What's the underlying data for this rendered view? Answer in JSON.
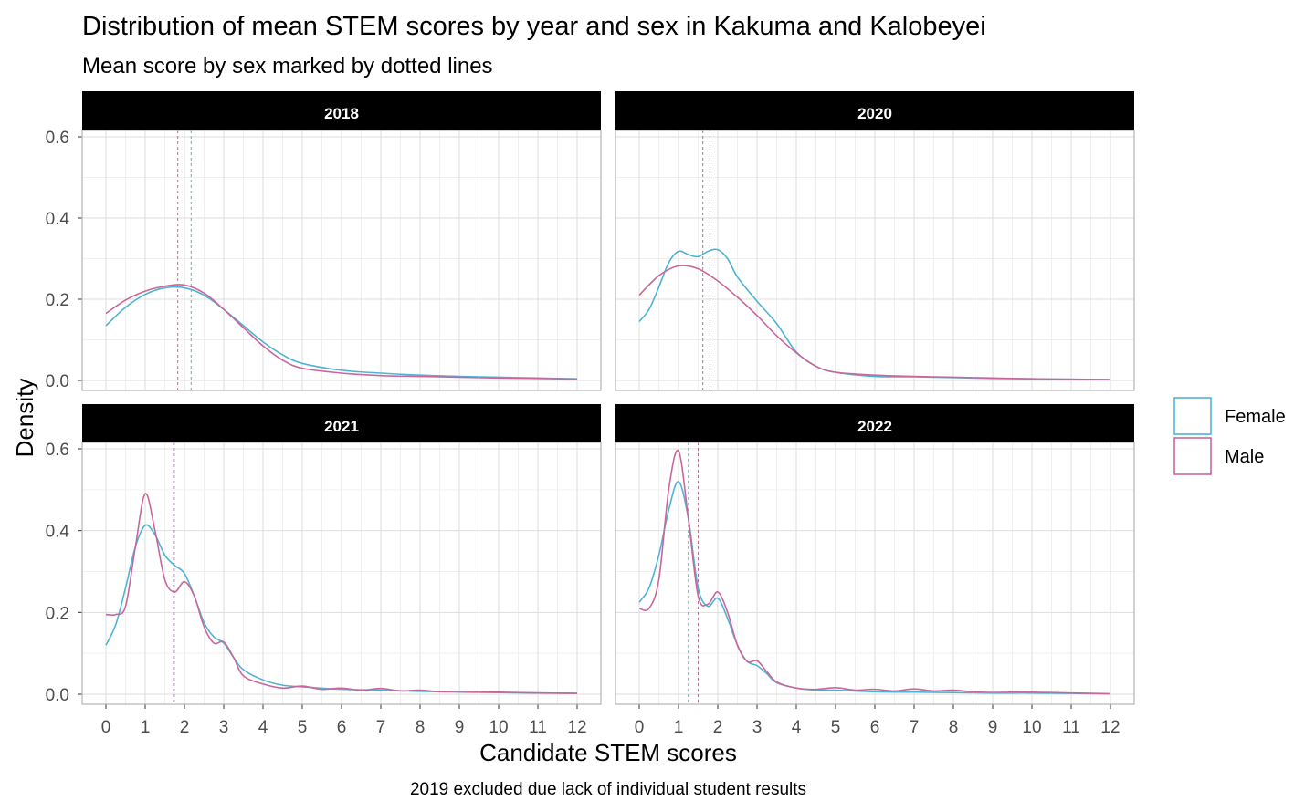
{
  "chart_data": {
    "type": "line",
    "subtype": "density",
    "title": "Distribution of mean STEM scores by year and sex in Kakuma and Kalobeyei",
    "subtitle": "Mean score by sex marked by dotted lines",
    "xlabel": "Candidate STEM scores",
    "ylabel": "Density",
    "caption": "2019 excluded due lack of individual student results",
    "xlim": [
      0,
      12
    ],
    "ylim": [
      0,
      0.6
    ],
    "x_ticks": [
      0,
      1,
      2,
      3,
      4,
      5,
      6,
      7,
      8,
      9,
      10,
      11,
      12
    ],
    "x_tick_labels": [
      "0",
      "1",
      "2",
      "3",
      "4",
      "5",
      "6",
      "7",
      "8",
      "9",
      "10",
      "11",
      "12"
    ],
    "y_ticks": [
      0,
      0.2,
      0.4,
      0.6
    ],
    "y_tick_labels": [
      "0.0",
      "0.2",
      "0.4",
      "0.6"
    ],
    "grid": true,
    "legend_position": "right",
    "colors": {
      "Female": "#4eb3d3",
      "Male": "#c9679c"
    },
    "legend": [
      {
        "name": "Female",
        "color": "#4eb3d3"
      },
      {
        "name": "Male",
        "color": "#c9679c"
      }
    ],
    "panels": [
      {
        "label": "2018",
        "means": {
          "Female": 2.17,
          "Male": 1.83
        },
        "series": [
          {
            "name": "Female",
            "x": [
              0,
              0.5,
              1,
              1.5,
              2,
              2.5,
              3,
              3.5,
              4,
              4.5,
              5,
              6,
              7,
              8,
              9,
              10,
              11,
              12
            ],
            "values": [
              0.135,
              0.18,
              0.212,
              0.228,
              0.228,
              0.21,
              0.175,
              0.135,
              0.095,
              0.063,
              0.042,
              0.025,
              0.018,
              0.013,
              0.01,
              0.008,
              0.006,
              0.004
            ]
          },
          {
            "name": "Male",
            "x": [
              0,
              0.5,
              1,
              1.5,
              2,
              2.5,
              3,
              3.5,
              4,
              4.5,
              5,
              6,
              7,
              8,
              9,
              10,
              11,
              12
            ],
            "values": [
              0.165,
              0.198,
              0.22,
              0.232,
              0.235,
              0.215,
              0.175,
              0.13,
              0.085,
              0.05,
              0.03,
              0.018,
              0.012,
              0.01,
              0.008,
              0.006,
              0.005,
              0.003
            ]
          }
        ]
      },
      {
        "label": "2020",
        "means": {
          "Female": 1.8,
          "Male": 1.62
        },
        "series": [
          {
            "name": "Female",
            "x": [
              0,
              0.25,
              0.5,
              0.75,
              1,
              1.25,
              1.5,
              1.75,
              2,
              2.25,
              2.5,
              3,
              3.5,
              4,
              4.5,
              5,
              6,
              7,
              8,
              9,
              10,
              11,
              12
            ],
            "values": [
              0.145,
              0.175,
              0.23,
              0.29,
              0.318,
              0.31,
              0.305,
              0.318,
              0.322,
              0.3,
              0.255,
              0.195,
              0.14,
              0.07,
              0.035,
              0.02,
              0.01,
              0.009,
              0.007,
              0.005,
              0.004,
              0.003,
              0.002
            ]
          },
          {
            "name": "Male",
            "x": [
              0,
              0.5,
              1,
              1.5,
              2,
              2.5,
              3,
              3.5,
              4,
              4.5,
              5,
              6,
              7,
              8,
              9,
              10,
              11,
              12
            ],
            "values": [
              0.21,
              0.258,
              0.282,
              0.275,
              0.245,
              0.205,
              0.16,
              0.11,
              0.068,
              0.035,
              0.02,
              0.013,
              0.01,
              0.008,
              0.006,
              0.004,
              0.003,
              0.002
            ]
          }
        ]
      },
      {
        "label": "2021",
        "means": {
          "Female": 1.72,
          "Male": 1.74
        },
        "series": [
          {
            "name": "Female",
            "x": [
              0,
              0.25,
              0.5,
              0.75,
              1,
              1.25,
              1.5,
              1.75,
              2,
              2.25,
              2.5,
              2.75,
              3,
              3.25,
              3.5,
              4,
              4.5,
              5,
              6,
              7,
              8,
              9,
              10,
              11,
              12
            ],
            "values": [
              0.12,
              0.17,
              0.26,
              0.36,
              0.413,
              0.39,
              0.34,
              0.315,
              0.295,
              0.24,
              0.175,
              0.14,
              0.125,
              0.09,
              0.06,
              0.035,
              0.022,
              0.018,
              0.012,
              0.01,
              0.007,
              0.005,
              0.004,
              0.003,
              0.002
            ]
          },
          {
            "name": "Male",
            "x": [
              0,
              0.25,
              0.5,
              0.75,
              1,
              1.25,
              1.5,
              1.75,
              2,
              2.25,
              2.5,
              2.75,
              3,
              3.25,
              3.5,
              4,
              4.5,
              5,
              5.5,
              6,
              6.5,
              7,
              7.5,
              8,
              8.5,
              9,
              10,
              11,
              12
            ],
            "values": [
              0.195,
              0.195,
              0.215,
              0.36,
              0.49,
              0.4,
              0.28,
              0.25,
              0.275,
              0.24,
              0.165,
              0.125,
              0.128,
              0.09,
              0.045,
              0.025,
              0.015,
              0.02,
              0.012,
              0.015,
              0.01,
              0.014,
              0.008,
              0.01,
              0.006,
              0.007,
              0.005,
              0.003,
              0.002
            ]
          }
        ]
      },
      {
        "label": "2022",
        "means": {
          "Female": 1.25,
          "Male": 1.5
        },
        "series": [
          {
            "name": "Female",
            "x": [
              0,
              0.25,
              0.5,
              0.75,
              1,
              1.25,
              1.5,
              1.75,
              2,
              2.25,
              2.5,
              2.75,
              3,
              3.25,
              3.5,
              4,
              4.5,
              5,
              6,
              7,
              8,
              9,
              10,
              11,
              12
            ],
            "values": [
              0.225,
              0.26,
              0.34,
              0.45,
              0.52,
              0.43,
              0.26,
              0.215,
              0.235,
              0.185,
              0.12,
              0.08,
              0.07,
              0.05,
              0.028,
              0.015,
              0.01,
              0.01,
              0.006,
              0.005,
              0.004,
              0.003,
              0.003,
              0.002,
              0.001
            ]
          },
          {
            "name": "Male",
            "x": [
              0,
              0.25,
              0.5,
              0.75,
              1,
              1.25,
              1.5,
              1.75,
              2,
              2.25,
              2.5,
              2.75,
              3,
              3.25,
              3.5,
              4,
              4.5,
              5,
              5.5,
              6,
              6.5,
              7,
              7.5,
              8,
              8.5,
              9,
              10,
              11,
              12
            ],
            "values": [
              0.21,
              0.21,
              0.28,
              0.5,
              0.595,
              0.43,
              0.24,
              0.22,
              0.25,
              0.2,
              0.12,
              0.08,
              0.082,
              0.055,
              0.03,
              0.015,
              0.012,
              0.016,
              0.01,
              0.012,
              0.008,
              0.013,
              0.008,
              0.01,
              0.006,
              0.007,
              0.005,
              0.003,
              0.001
            ]
          }
        ]
      }
    ]
  }
}
